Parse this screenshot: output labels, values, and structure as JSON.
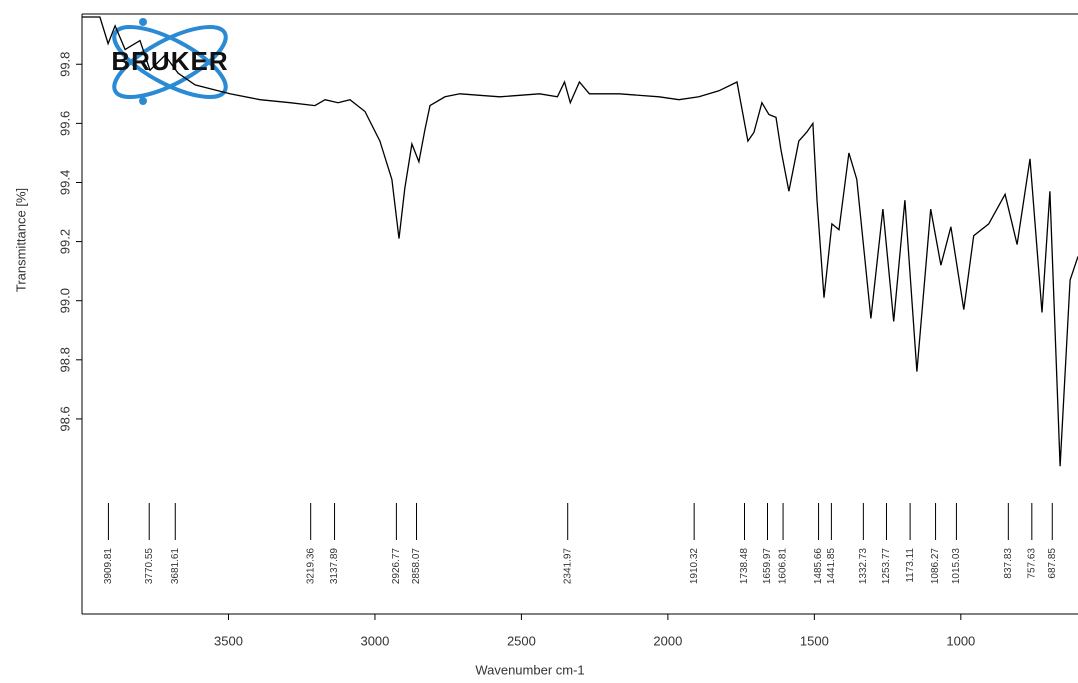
{
  "chart_data": {
    "type": "line",
    "logo": "BRUKER",
    "x_label": "Wavenumber cm-1",
    "y_label": "Transmittance [%]",
    "xlim": [
      4000,
      600
    ],
    "ylim": [
      97.94,
      99.97
    ],
    "xticks": [
      3500,
      3000,
      2500,
      2000,
      1500,
      1000
    ],
    "yticks": [
      99.8,
      99.6,
      99.4,
      99.2,
      {
        "value": 99,
        "label": "99.0"
      },
      98.8,
      98.6
    ],
    "x": [
      4000,
      3939,
      3911,
      3887,
      3853,
      3802,
      3768,
      3717,
      3672,
      3614,
      3495,
      3392,
      3290,
      3205,
      3170,
      3126,
      3085,
      3034,
      2983,
      2942,
      2918,
      2898,
      2874,
      2850,
      2829,
      2812,
      2761,
      2710,
      2574,
      2438,
      2377,
      2353,
      2333,
      2302,
      2268,
      2166,
      2030,
      1962,
      1894,
      1826,
      1764,
      1751,
      1727,
      1706,
      1679,
      1655,
      1631,
      1614,
      1587,
      1553,
      1526,
      1505,
      1491,
      1467,
      1440,
      1416,
      1382,
      1355,
      1307,
      1266,
      1229,
      1191,
      1150,
      1103,
      1068,
      1034,
      990,
      956,
      905,
      849,
      808,
      764,
      723,
      696,
      661,
      627,
      600
    ],
    "series": [
      {
        "color": "#000000",
        "values": [
          99.96,
          99.96,
          99.87,
          99.93,
          99.85,
          99.88,
          99.78,
          99.83,
          99.77,
          99.73,
          99.7,
          99.68,
          99.67,
          99.66,
          99.68,
          99.67,
          99.68,
          99.64,
          99.54,
          99.41,
          99.21,
          99.38,
          99.53,
          99.47,
          99.58,
          99.66,
          99.69,
          99.7,
          99.69,
          99.7,
          99.69,
          99.74,
          99.67,
          99.74,
          99.7,
          99.7,
          99.69,
          99.68,
          99.69,
          99.71,
          99.74,
          99.67,
          99.54,
          99.57,
          99.67,
          99.63,
          99.62,
          99.51,
          99.37,
          99.54,
          99.57,
          99.6,
          99.34,
          99.01,
          99.26,
          99.24,
          99.5,
          99.41,
          98.94,
          99.31,
          98.93,
          99.34,
          98.76,
          99.31,
          99.12,
          99.25,
          98.97,
          99.22,
          99.26,
          99.36,
          99.19,
          99.48,
          98.96,
          99.37,
          98.44,
          99.07,
          99.15
        ]
      }
    ],
    "peaks": [
      3909.81,
      3770.55,
      3681.61,
      3219.36,
      3137.89,
      2926.77,
      2858.07,
      2341.97,
      1910.32,
      1738.48,
      1659.97,
      1606.81,
      1485.66,
      1441.85,
      1332.73,
      1253.77,
      1173.11,
      1086.27,
      1015.03,
      837.83,
      757.63,
      687.85
    ]
  }
}
